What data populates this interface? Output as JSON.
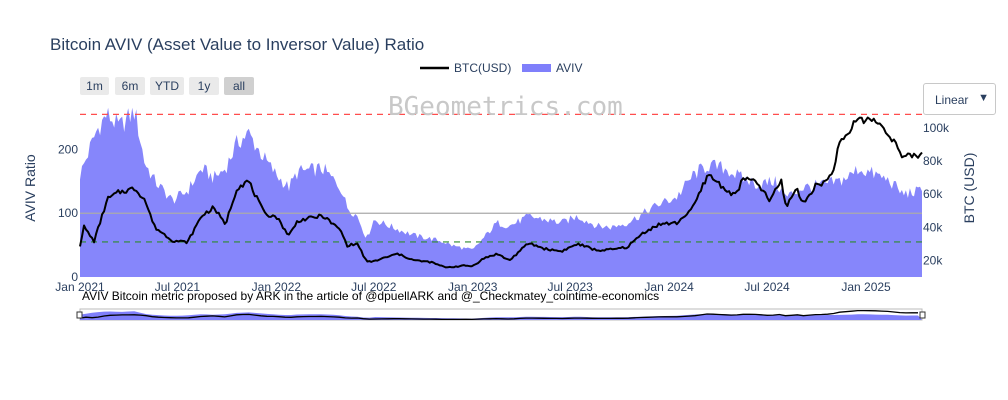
{
  "chart_data": {
    "type": "line",
    "title": "Bitcoin AVIV (Asset Value to Inversor Value) Ratio",
    "watermark": "BGeometrics.com",
    "annotation": "AVIV Bitcoin metric proposed by ARK in the article of @dpuellARK and @_Checkmatey_cointime-economics",
    "range_buttons": [
      "1m",
      "6m",
      "YTD",
      "1y",
      "all"
    ],
    "active_range": "all",
    "scale_selector": "Linear",
    "legend": [
      {
        "name": "BTC(USD)",
        "color": "#000000"
      },
      {
        "name": "AVIV",
        "color": "#7f7ffb"
      }
    ],
    "x_ticks": [
      "Jan 2021",
      "Jul 2021",
      "Jan 2022",
      "Jul 2022",
      "Jan 2023",
      "Jul 2023",
      "Jan 2024",
      "Jul 2024",
      "Jan 2025"
    ],
    "x_range": [
      "2021-01-01",
      "2025-04-15"
    ],
    "y_left": {
      "label": "AVIV Ratio",
      "range": [
        0,
        265
      ],
      "ticks": [
        0,
        100,
        200
      ],
      "tick_labels": [
        "0",
        "100",
        "200"
      ]
    },
    "y_right": {
      "label": "BTC (USD)",
      "range": [
        10000,
        112000
      ],
      "ticks": [
        20000,
        40000,
        60000,
        80000,
        100000
      ],
      "tick_labels": [
        "20k",
        "40k",
        "60k",
        "80k",
        "100k"
      ]
    },
    "reference_lines": [
      {
        "axis": "left",
        "value": 255,
        "color": "#ff4d4d",
        "style": "dashed"
      },
      {
        "axis": "left",
        "value": 100,
        "color": "#aaaaaa",
        "style": "solid"
      },
      {
        "axis": "left",
        "value": 55,
        "color": "#2e8b2e",
        "style": "dashed"
      }
    ],
    "series": [
      {
        "name": "AVIV",
        "axis": "left",
        "type": "area",
        "color": "#7f7ffb",
        "x": [
          "2021-01-01",
          "2021-02-01",
          "2021-02-20",
          "2021-03-15",
          "2021-04-13",
          "2021-05-01",
          "2021-05-20",
          "2021-06-22",
          "2021-07-20",
          "2021-08-15",
          "2021-09-07",
          "2021-09-28",
          "2021-10-20",
          "2021-11-10",
          "2021-12-10",
          "2022-01-01",
          "2022-01-24",
          "2022-02-10",
          "2022-03-28",
          "2022-05-01",
          "2022-05-12",
          "2022-06-01",
          "2022-06-18",
          "2022-07-01",
          "2022-08-14",
          "2022-09-15",
          "2022-10-15",
          "2022-11-09",
          "2022-11-21",
          "2022-12-15",
          "2023-01-01",
          "2023-01-20",
          "2023-02-15",
          "2023-03-10",
          "2023-04-15",
          "2023-05-15",
          "2023-06-15",
          "2023-07-15",
          "2023-08-20",
          "2023-09-15",
          "2023-10-15",
          "2023-11-15",
          "2023-12-15",
          "2024-01-15",
          "2024-02-15",
          "2024-03-13",
          "2024-04-15",
          "2024-05-15",
          "2024-06-15",
          "2024-07-15",
          "2024-08-05",
          "2024-09-06",
          "2024-10-15",
          "2024-11-12",
          "2024-12-05",
          "2024-12-17",
          "2025-01-20",
          "2025-02-15",
          "2025-03-10",
          "2025-04-15"
        ],
        "y": [
          160,
          230,
          255,
          235,
          260,
          180,
          150,
          120,
          135,
          170,
          155,
          170,
          210,
          225,
          185,
          160,
          140,
          165,
          170,
          140,
          110,
          95,
          60,
          90,
          75,
          65,
          60,
          55,
          50,
          45,
          42,
          60,
          85,
          80,
          95,
          90,
          85,
          95,
          80,
          78,
          85,
          100,
          115,
          125,
          160,
          175,
          170,
          155,
          145,
          150,
          125,
          140,
          145,
          150,
          160,
          170,
          160,
          150,
          130,
          135
        ]
      },
      {
        "name": "BTC(USD)",
        "axis": "right",
        "type": "line",
        "color": "#000000",
        "x": [
          "2021-01-01",
          "2021-01-08",
          "2021-01-27",
          "2021-02-21",
          "2021-03-13",
          "2021-04-13",
          "2021-05-01",
          "2021-05-20",
          "2021-06-22",
          "2021-07-20",
          "2021-08-15",
          "2021-09-07",
          "2021-09-28",
          "2021-10-20",
          "2021-11-10",
          "2021-12-10",
          "2022-01-01",
          "2022-01-24",
          "2022-02-10",
          "2022-03-28",
          "2022-05-01",
          "2022-05-12",
          "2022-06-01",
          "2022-06-18",
          "2022-07-01",
          "2022-08-14",
          "2022-09-15",
          "2022-10-15",
          "2022-11-09",
          "2022-11-21",
          "2022-12-15",
          "2023-01-01",
          "2023-01-20",
          "2023-02-15",
          "2023-03-10",
          "2023-04-15",
          "2023-05-15",
          "2023-06-15",
          "2023-07-15",
          "2023-08-20",
          "2023-09-15",
          "2023-10-15",
          "2023-11-15",
          "2023-12-15",
          "2024-01-15",
          "2024-02-15",
          "2024-03-13",
          "2024-04-15",
          "2024-05-01",
          "2024-05-20",
          "2024-06-15",
          "2024-07-05",
          "2024-07-28",
          "2024-08-05",
          "2024-08-25",
          "2024-09-06",
          "2024-09-28",
          "2024-10-15",
          "2024-10-29",
          "2024-11-12",
          "2024-12-05",
          "2024-12-17",
          "2025-01-20",
          "2025-02-15",
          "2025-03-10",
          "2025-04-15"
        ],
        "y": [
          29000,
          40500,
          31500,
          57000,
          61000,
          63500,
          57000,
          40000,
          32000,
          31000,
          47000,
          52000,
          41500,
          64000,
          68000,
          48000,
          46500,
          35000,
          44000,
          47000,
          38000,
          29000,
          30000,
          19000,
          19500,
          24000,
          20000,
          19000,
          16000,
          16000,
          16800,
          16600,
          21000,
          24000,
          20000,
          30500,
          27000,
          25500,
          30000,
          26000,
          26500,
          28000,
          37000,
          42000,
          42500,
          52000,
          72000,
          63000,
          59000,
          70000,
          66000,
          56000,
          68000,
          52000,
          64000,
          54000,
          65000,
          67000,
          72000,
          89000,
          100000,
          106000,
          104000,
          96000,
          82000,
          84000
        ]
      }
    ]
  }
}
